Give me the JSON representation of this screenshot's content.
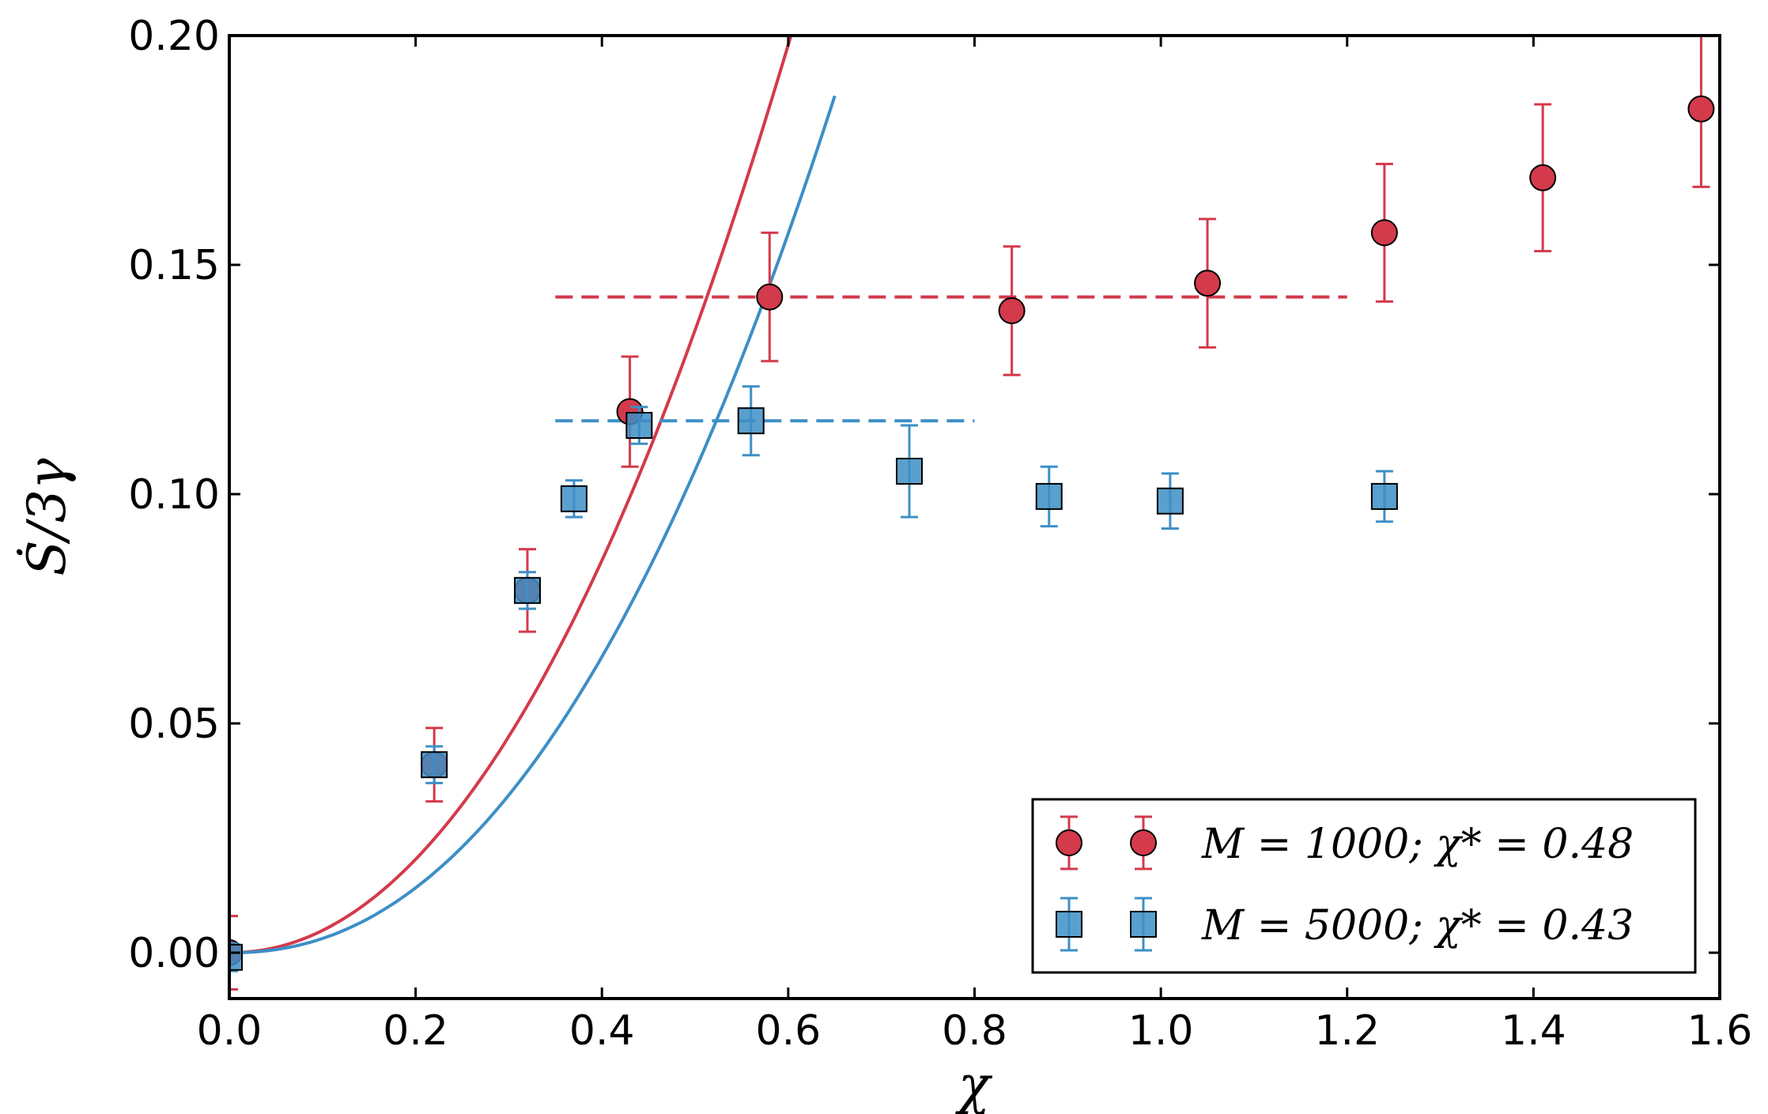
{
  "chart_data": {
    "type": "scatter",
    "xlabel": "χ",
    "ylabel": "Ṡ/3γ",
    "xlim": [
      0.0,
      1.6
    ],
    "ylim": [
      -0.01,
      0.2
    ],
    "xticks": [
      "0.0",
      "0.2",
      "0.4",
      "0.6",
      "0.8",
      "1.0",
      "1.2",
      "1.4",
      "1.6"
    ],
    "xtick_values": [
      0.0,
      0.2,
      0.4,
      0.6,
      0.8,
      1.0,
      1.2,
      1.4,
      1.6
    ],
    "yticks": [
      "0.00",
      "0.05",
      "0.10",
      "0.15",
      "0.20"
    ],
    "ytick_values": [
      0.0,
      0.05,
      0.1,
      0.15,
      0.2
    ],
    "grid": false,
    "legend_position": "bottom-right",
    "series": [
      {
        "name": "M = 1000; χ* = 0.48",
        "legend_label": "M = 1000; χ* = 0.48",
        "marker": "circle",
        "color": "#d33a4b",
        "x": [
          0.0,
          0.22,
          0.32,
          0.43,
          0.58,
          0.84,
          1.05,
          1.24,
          1.41,
          1.58
        ],
        "y": [
          0.0,
          0.041,
          0.079,
          0.118,
          0.143,
          0.14,
          0.146,
          0.157,
          0.169,
          0.184
        ],
        "err": [
          0.008,
          0.008,
          0.009,
          0.012,
          0.014,
          0.014,
          0.014,
          0.015,
          0.016,
          0.017
        ],
        "fit_curve": {
          "a": 0.57,
          "b": 1.07,
          "x_max": 0.62
        },
        "plateau": {
          "y": 0.143,
          "x_start": 0.35,
          "x_end": 1.2
        }
      },
      {
        "name": "M = 5000; χ* = 0.43",
        "legend_label": "M = 5000; χ* = 0.43",
        "marker": "square",
        "color": "#3d8fc6",
        "x": [
          0.0,
          0.22,
          0.32,
          0.37,
          0.44,
          0.56,
          0.73,
          0.88,
          1.01,
          1.24
        ],
        "y": [
          -0.001,
          0.041,
          0.079,
          0.099,
          0.115,
          0.116,
          0.105,
          0.0995,
          0.0985,
          0.0995
        ],
        "err": [
          0.003,
          0.004,
          0.004,
          0.004,
          0.004,
          0.0075,
          0.01,
          0.0065,
          0.006,
          0.0055
        ],
        "fit_curve": {
          "a": 0.48,
          "b": 1.19,
          "x_max": 0.65
        },
        "plateau": {
          "y": 0.116,
          "x_start": 0.35,
          "x_end": 0.8
        }
      }
    ]
  }
}
